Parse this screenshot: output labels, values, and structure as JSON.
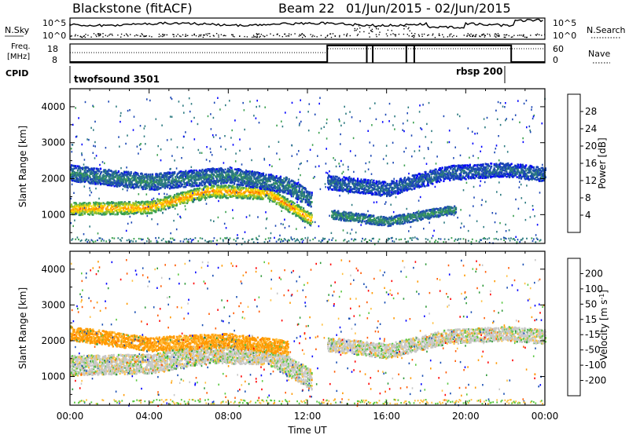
{
  "header": {
    "title": "Blackstone (fitACF)",
    "beam": "Beam 22",
    "dates": "01/Jun/2015 - 02/Jun/2015"
  },
  "noise_panel": {
    "left_label": "N.Sky",
    "right_label": "N.Search",
    "left_ticks": [
      "10^5",
      "10^0"
    ],
    "right_ticks": [
      "10^5",
      "10^0"
    ]
  },
  "freq_panel": {
    "left_label_line1": "Freq.",
    "left_label_line2": "[MHz]",
    "right_label": "Nave",
    "left_ticks": [
      "18",
      "8"
    ],
    "right_ticks": [
      "60",
      "0"
    ]
  },
  "cpid_panel": {
    "label": "CPID",
    "programs": [
      "twofsound 3501",
      "rbsp 200"
    ]
  },
  "colors": {
    "power_scale": [
      "#0000ff",
      "#1a46b4",
      "#2c7a80",
      "#3aa04e",
      "#8fc030",
      "#ffd700",
      "#ff9900",
      "#ff5a00",
      "#ff0000"
    ],
    "velocity_scale": [
      "#ff0000",
      "#ff5a00",
      "#ff9900",
      "#ffc040",
      "#c8c8c8",
      "#c8c8c8",
      "#59c840",
      "#2f9a3a",
      "#1a4fb4",
      "#0000ff"
    ]
  },
  "chart_data": [
    {
      "type": "heatmap",
      "name": "power",
      "ylabel": "Slant Range [km]",
      "xlabel": "",
      "ylim": [
        200,
        4500
      ],
      "yticks": [
        "1000",
        "2000",
        "3000",
        "4000"
      ],
      "xlim": [
        0,
        24
      ],
      "colorbar": {
        "label": "Power [dB]",
        "range": [
          0,
          32
        ],
        "ticks": [
          "4",
          "8",
          "12",
          "16",
          "20",
          "24",
          "28"
        ]
      },
      "bands": [
        {
          "t": [
            0,
            4,
            7,
            10,
            12.2
          ],
          "range": [
            1150,
            1200,
            1650,
            1600,
            850
          ],
          "width": 350,
          "power": 24
        },
        {
          "t": [
            0,
            4,
            8,
            11,
            12.2
          ],
          "range": [
            2150,
            1900,
            2100,
            1800,
            1400
          ],
          "width": 450,
          "power": 10
        },
        {
          "t": [
            13,
            16,
            19,
            22,
            24
          ],
          "range": [
            1900,
            1700,
            2150,
            2250,
            2100
          ],
          "width": 400,
          "power": 8
        },
        {
          "t": [
            13.2,
            16,
            19.5
          ],
          "range": [
            1000,
            800,
            1150
          ],
          "width": 250,
          "power": 12
        }
      ]
    },
    {
      "type": "heatmap",
      "name": "velocity",
      "ylabel": "Slant Range [km]",
      "xlabel": "Time UT",
      "ylim": [
        200,
        4500
      ],
      "yticks": [
        "1000",
        "2000",
        "3000",
        "4000"
      ],
      "xlim": [
        0,
        24
      ],
      "xticks": [
        "00:00",
        "04:00",
        "08:00",
        "12:00",
        "16:00",
        "20:00",
        "00:00"
      ],
      "colorbar": {
        "label": "Velocity [m s",
        "unit_superscript": "-1",
        "unit_close": "]",
        "range": [
          -250,
          250
        ],
        "ticks": [
          "-200",
          "-100",
          "-50",
          "-15",
          "15",
          "50",
          "100",
          "200"
        ]
      },
      "bands": [
        {
          "t": [
            0,
            4,
            7,
            10,
            12.2
          ],
          "range": [
            1300,
            1350,
            1650,
            1600,
            900
          ],
          "width": 550,
          "velocity": 0
        },
        {
          "t": [
            0,
            4,
            8,
            11
          ],
          "range": [
            2200,
            1900,
            2000,
            1800
          ],
          "width": 400,
          "velocity": -60
        },
        {
          "t": [
            13,
            16,
            19,
            22,
            24
          ],
          "range": [
            1900,
            1700,
            2100,
            2200,
            2100
          ],
          "width": 400,
          "velocity": 0
        }
      ]
    }
  ]
}
